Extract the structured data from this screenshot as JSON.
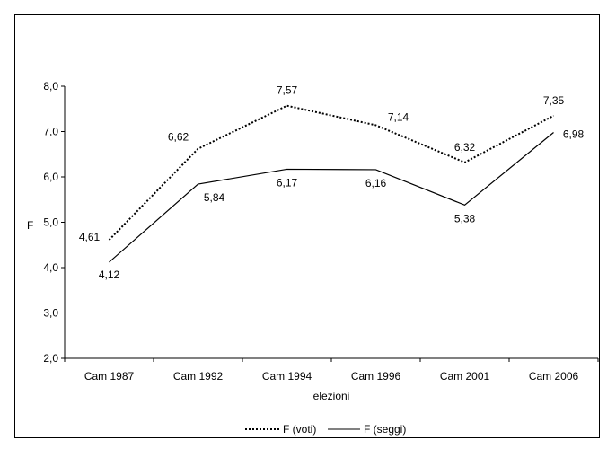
{
  "chart_data": {
    "type": "line",
    "title": "",
    "xlabel": "elezioni",
    "ylabel": "F",
    "ylim": [
      2.0,
      8.0
    ],
    "yticks": [
      "2,0",
      "3,0",
      "4,0",
      "5,0",
      "6,0",
      "7,0",
      "8,0"
    ],
    "ytick_values": [
      2,
      3,
      4,
      5,
      6,
      7,
      8
    ],
    "categories": [
      "Cam 1987",
      "Cam 1992",
      "Cam 1994",
      "Cam 1996",
      "Cam 2001",
      "Cam 2006"
    ],
    "series": [
      {
        "name": "F (voti)",
        "style": "dotted",
        "color": "#000000",
        "values": [
          4.61,
          6.62,
          7.57,
          7.14,
          6.32,
          7.35
        ],
        "labels": [
          "4,61",
          "6,62",
          "7,57",
          "7,14",
          "6,32",
          "7,35"
        ]
      },
      {
        "name": "F (seggi)",
        "style": "solid",
        "color": "#000000",
        "values": [
          4.12,
          5.84,
          6.17,
          6.16,
          5.38,
          6.98
        ],
        "labels": [
          "4,12",
          "5,84",
          "6,17",
          "6,16",
          "5,38",
          "6,98"
        ]
      }
    ],
    "grid": false,
    "legend_position": "bottom"
  }
}
